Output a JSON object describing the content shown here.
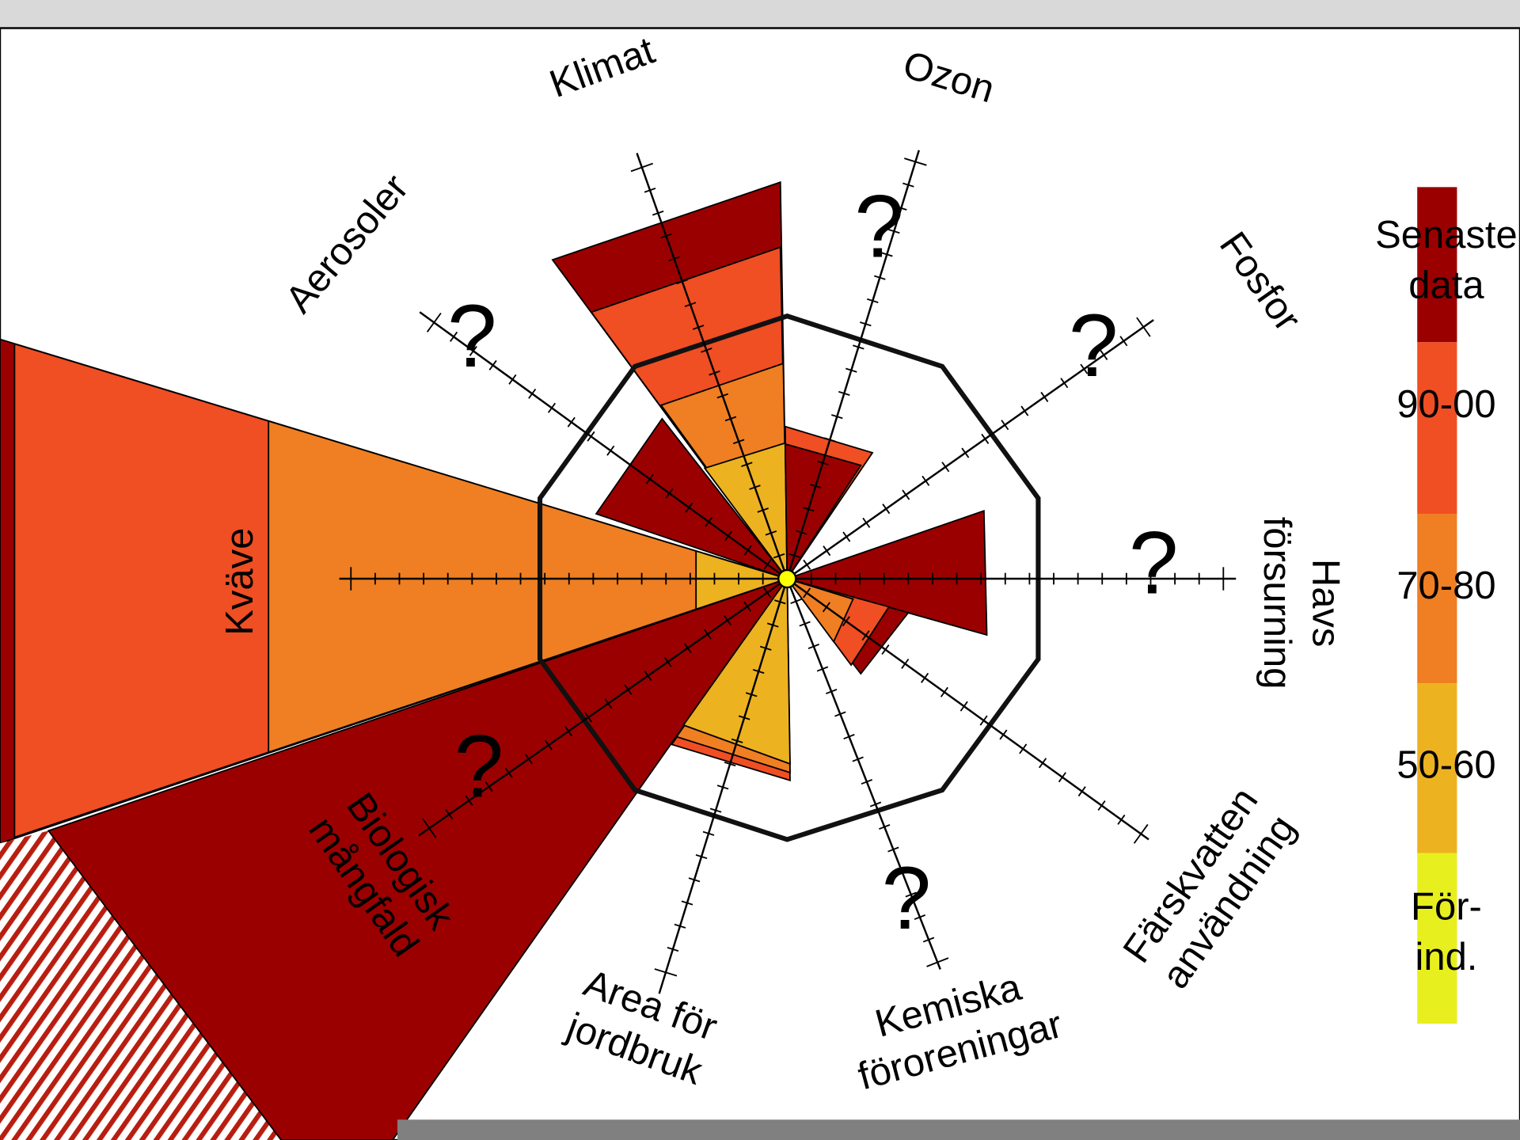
{
  "boundaries": [
    {
      "lines": [
        "Klimat"
      ]
    },
    {
      "lines": [
        "Ozon"
      ]
    },
    {
      "lines": [
        "Aerosoler"
      ]
    },
    {
      "lines": [
        "Havs",
        "försurning"
      ]
    },
    {
      "lines": [
        "Färskvatten",
        "användning"
      ]
    },
    {
      "lines": [
        "Kemiska",
        "föroreningar"
      ]
    },
    {
      "lines": [
        "Area för",
        "jordbruk"
      ]
    },
    {
      "lines": [
        "Biologisk",
        "mångfald"
      ]
    },
    {
      "lines": [
        "Kväve"
      ]
    },
    {
      "lines": [
        "Fosfor"
      ]
    }
  ],
  "unknown_marker": "?",
  "legend": [
    {
      "lines": [
        "Senaste",
        "data"
      ]
    },
    {
      "lines": [
        "90-00"
      ]
    },
    {
      "lines": [
        "70-80"
      ]
    },
    {
      "lines": [
        "50-60"
      ]
    },
    {
      "lines": [
        "För-",
        "ind."
      ]
    }
  ]
}
